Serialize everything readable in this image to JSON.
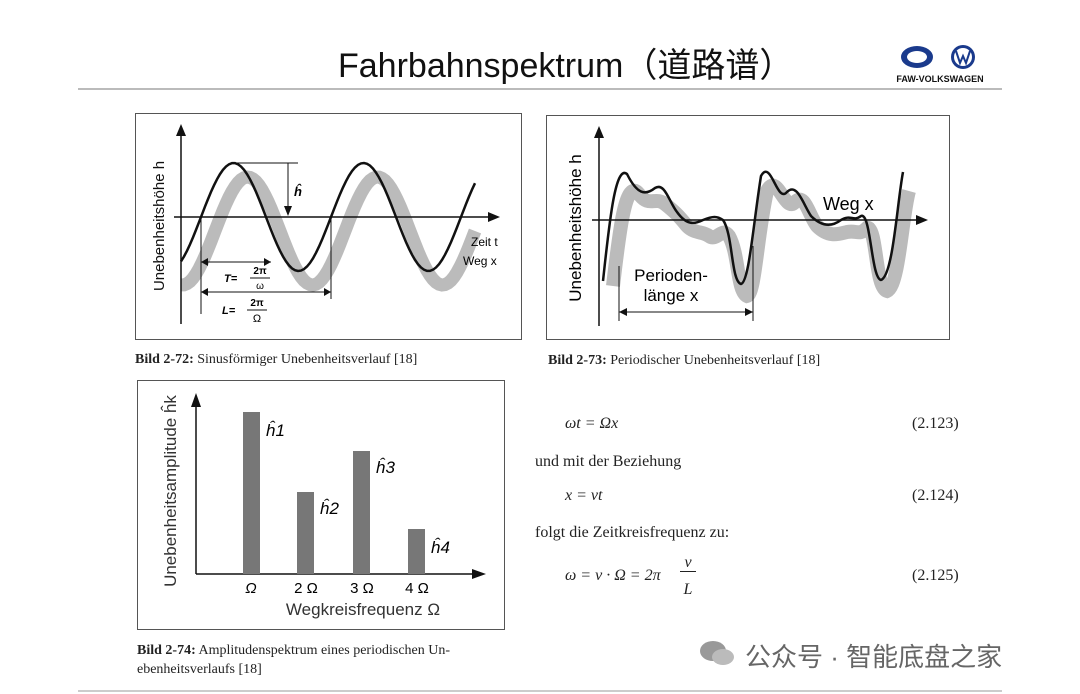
{
  "header": {
    "title": "Fahrbahnspektrum（道路谱）",
    "logo_text": "FAW-VOLKSWAGEN"
  },
  "figure_1": {
    "y_label": "Unebenheitshöhe h",
    "amplitude": "ĥ",
    "x_label_1": "Zeit t",
    "x_label_2": "Weg x",
    "period_t": "T=",
    "period_t_num": "2π",
    "period_t_den": "ω",
    "period_l": "L=",
    "period_l_num": "2π",
    "period_l_den": "Ω",
    "caption_label": "Bild 2-72:",
    "caption": "Sinusförmiger Unebenheitsverlauf [18]"
  },
  "figure_2": {
    "y_label": "Unebenheitshöhe h",
    "x_label": "Weg x",
    "period_1": "Perioden-",
    "period_2": "länge x",
    "caption_label": "Bild 2-73:",
    "caption": "Periodischer Unebenheitsverlauf [18]"
  },
  "figure_3": {
    "y_label": "Unebenheitsamplitude ĥk",
    "bar_labels": [
      "ĥ1",
      "ĥ2",
      "ĥ3",
      "ĥ4"
    ],
    "x_ticks": [
      "Ω",
      "2 Ω",
      "3 Ω",
      "4 Ω"
    ],
    "x_label": "Wegkreisfrequenz Ω",
    "caption_label": "Bild 2-74:",
    "caption_1": "Amplitudenspektrum eines periodischen Un-",
    "caption_2": "ebenheitsverlaufs [18]"
  },
  "equations": {
    "eq_1": "ωt = Ωx",
    "eq_1_number": "(2.123)",
    "text_1": "und mit der Beziehung",
    "eq_2": "x = vt",
    "eq_2_number": "(2.124)",
    "text_2": "folgt die Zeitkreisfrequenz zu:",
    "eq_3": "ω = v · Ω = 2π",
    "eq_3_num": "v",
    "eq_3_den": "L",
    "eq_3_number": "(2.125)"
  },
  "watermark": "公众号 · 智能底盘之家"
}
